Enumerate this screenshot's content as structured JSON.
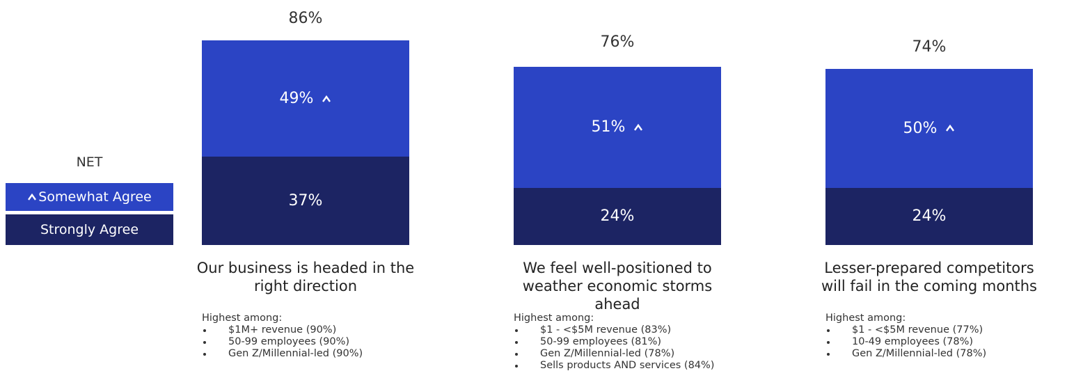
{
  "chart_data": {
    "type": "stacked_bar",
    "categories": [
      "Our business is headed in the right direction",
      "We feel well-positioned to weather economic storms ahead",
      "Lesser-prepared competitors will fail in the coming months"
    ],
    "series": [
      {
        "name": "Strongly Agree",
        "color": "#1c2463",
        "values": [
          37,
          24,
          24
        ],
        "value_labels": [
          "37%",
          "24%",
          "24%"
        ]
      },
      {
        "name": "Somewhat Agree",
        "color": "#2b44c4",
        "values": [
          49,
          51,
          50
        ],
        "value_labels": [
          "49%",
          "51%",
          "50%"
        ],
        "marker": "caret"
      }
    ],
    "net": {
      "label": "NET",
      "values": [
        86,
        76,
        74
      ],
      "value_labels": [
        "86%",
        "76%",
        "74%"
      ]
    },
    "ylim": [
      0,
      100
    ],
    "notes": [
      {
        "heading": "Highest among:",
        "items": [
          "$1M+ revenue (90%)",
          "50-99 employees (90%)",
          "Gen Z/Millennial-led (90%)"
        ]
      },
      {
        "heading": "Highest among:",
        "items": [
          "$1 - <$5M revenue (83%)",
          "50-99 employees (81%)",
          "Gen Z/Millennial-led (78%)",
          "Sells products AND services (84%)"
        ]
      },
      {
        "heading": "Highest among:",
        "items": [
          "$1 - <$5M revenue (77%)",
          "10-49 employees (78%)",
          "Gen Z/Millennial-led (78%)"
        ]
      }
    ]
  }
}
